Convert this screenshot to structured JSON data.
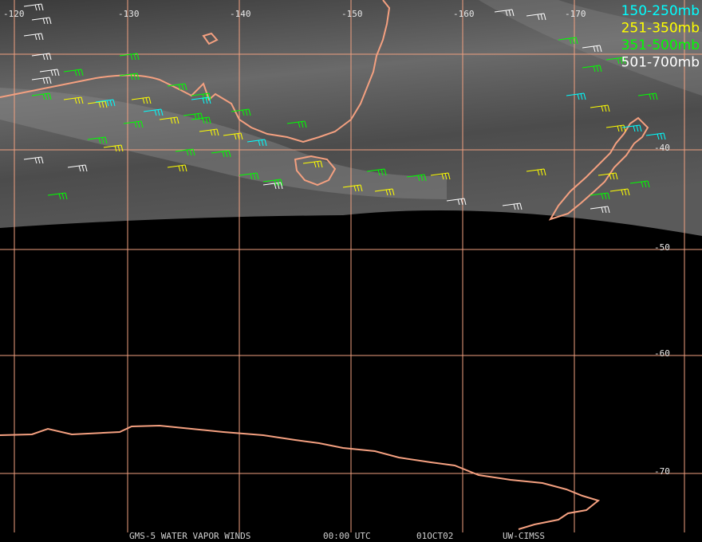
{
  "map": {
    "longitude_labels": [
      "-120",
      "-130",
      "-140",
      "-150",
      "-160",
      "-170"
    ],
    "latitude_labels": [
      "-40",
      "-50",
      "-60",
      "-70"
    ],
    "legend": [
      {
        "label": "150-250mb",
        "color": "#00ffff"
      },
      {
        "label": "251-350mb",
        "color": "#ffff00"
      },
      {
        "label": "351-500mb",
        "color": "#00ff00"
      },
      {
        "label": "501-700mb",
        "color": "#ffffff"
      }
    ],
    "footer": [
      "GMS-5 WATER VAPOR WINDS",
      "00:00 UTC",
      "01OCT02",
      "UW-CIMSS"
    ]
  }
}
